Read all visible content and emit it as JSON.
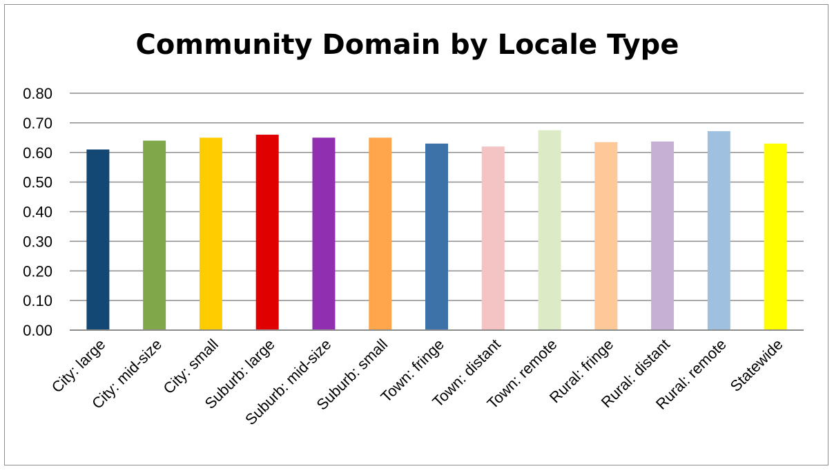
{
  "chart_data": {
    "type": "bar",
    "title": "Community Domain by Locale Type",
    "xlabel": "",
    "ylabel": "",
    "ylim": [
      0,
      0.8
    ],
    "yticks": [
      "0.00",
      "0.10",
      "0.20",
      "0.30",
      "0.40",
      "0.50",
      "0.60",
      "0.70",
      "0.80"
    ],
    "grid": true,
    "legend": "none",
    "categories": [
      "City: large",
      "City: mid-size",
      "City: small",
      "Suburb: large",
      "Suburb: mid-size",
      "Suburb: small",
      "Town: fringe",
      "Town: distant",
      "Town: remote",
      "Rural: fringe",
      "Rural: distant",
      "Rural: remote",
      "Statewide"
    ],
    "values": [
      0.61,
      0.64,
      0.65,
      0.66,
      0.65,
      0.65,
      0.63,
      0.62,
      0.675,
      0.635,
      0.637,
      0.672,
      0.63
    ],
    "colors": [
      "#134874",
      "#80a84a",
      "#ffcc00",
      "#e00000",
      "#9030b0",
      "#ffa64d",
      "#3d72a8",
      "#f4c3c3",
      "#dcebc5",
      "#ffc899",
      "#c6b0d4",
      "#9fc0de",
      "#ffff00"
    ]
  }
}
